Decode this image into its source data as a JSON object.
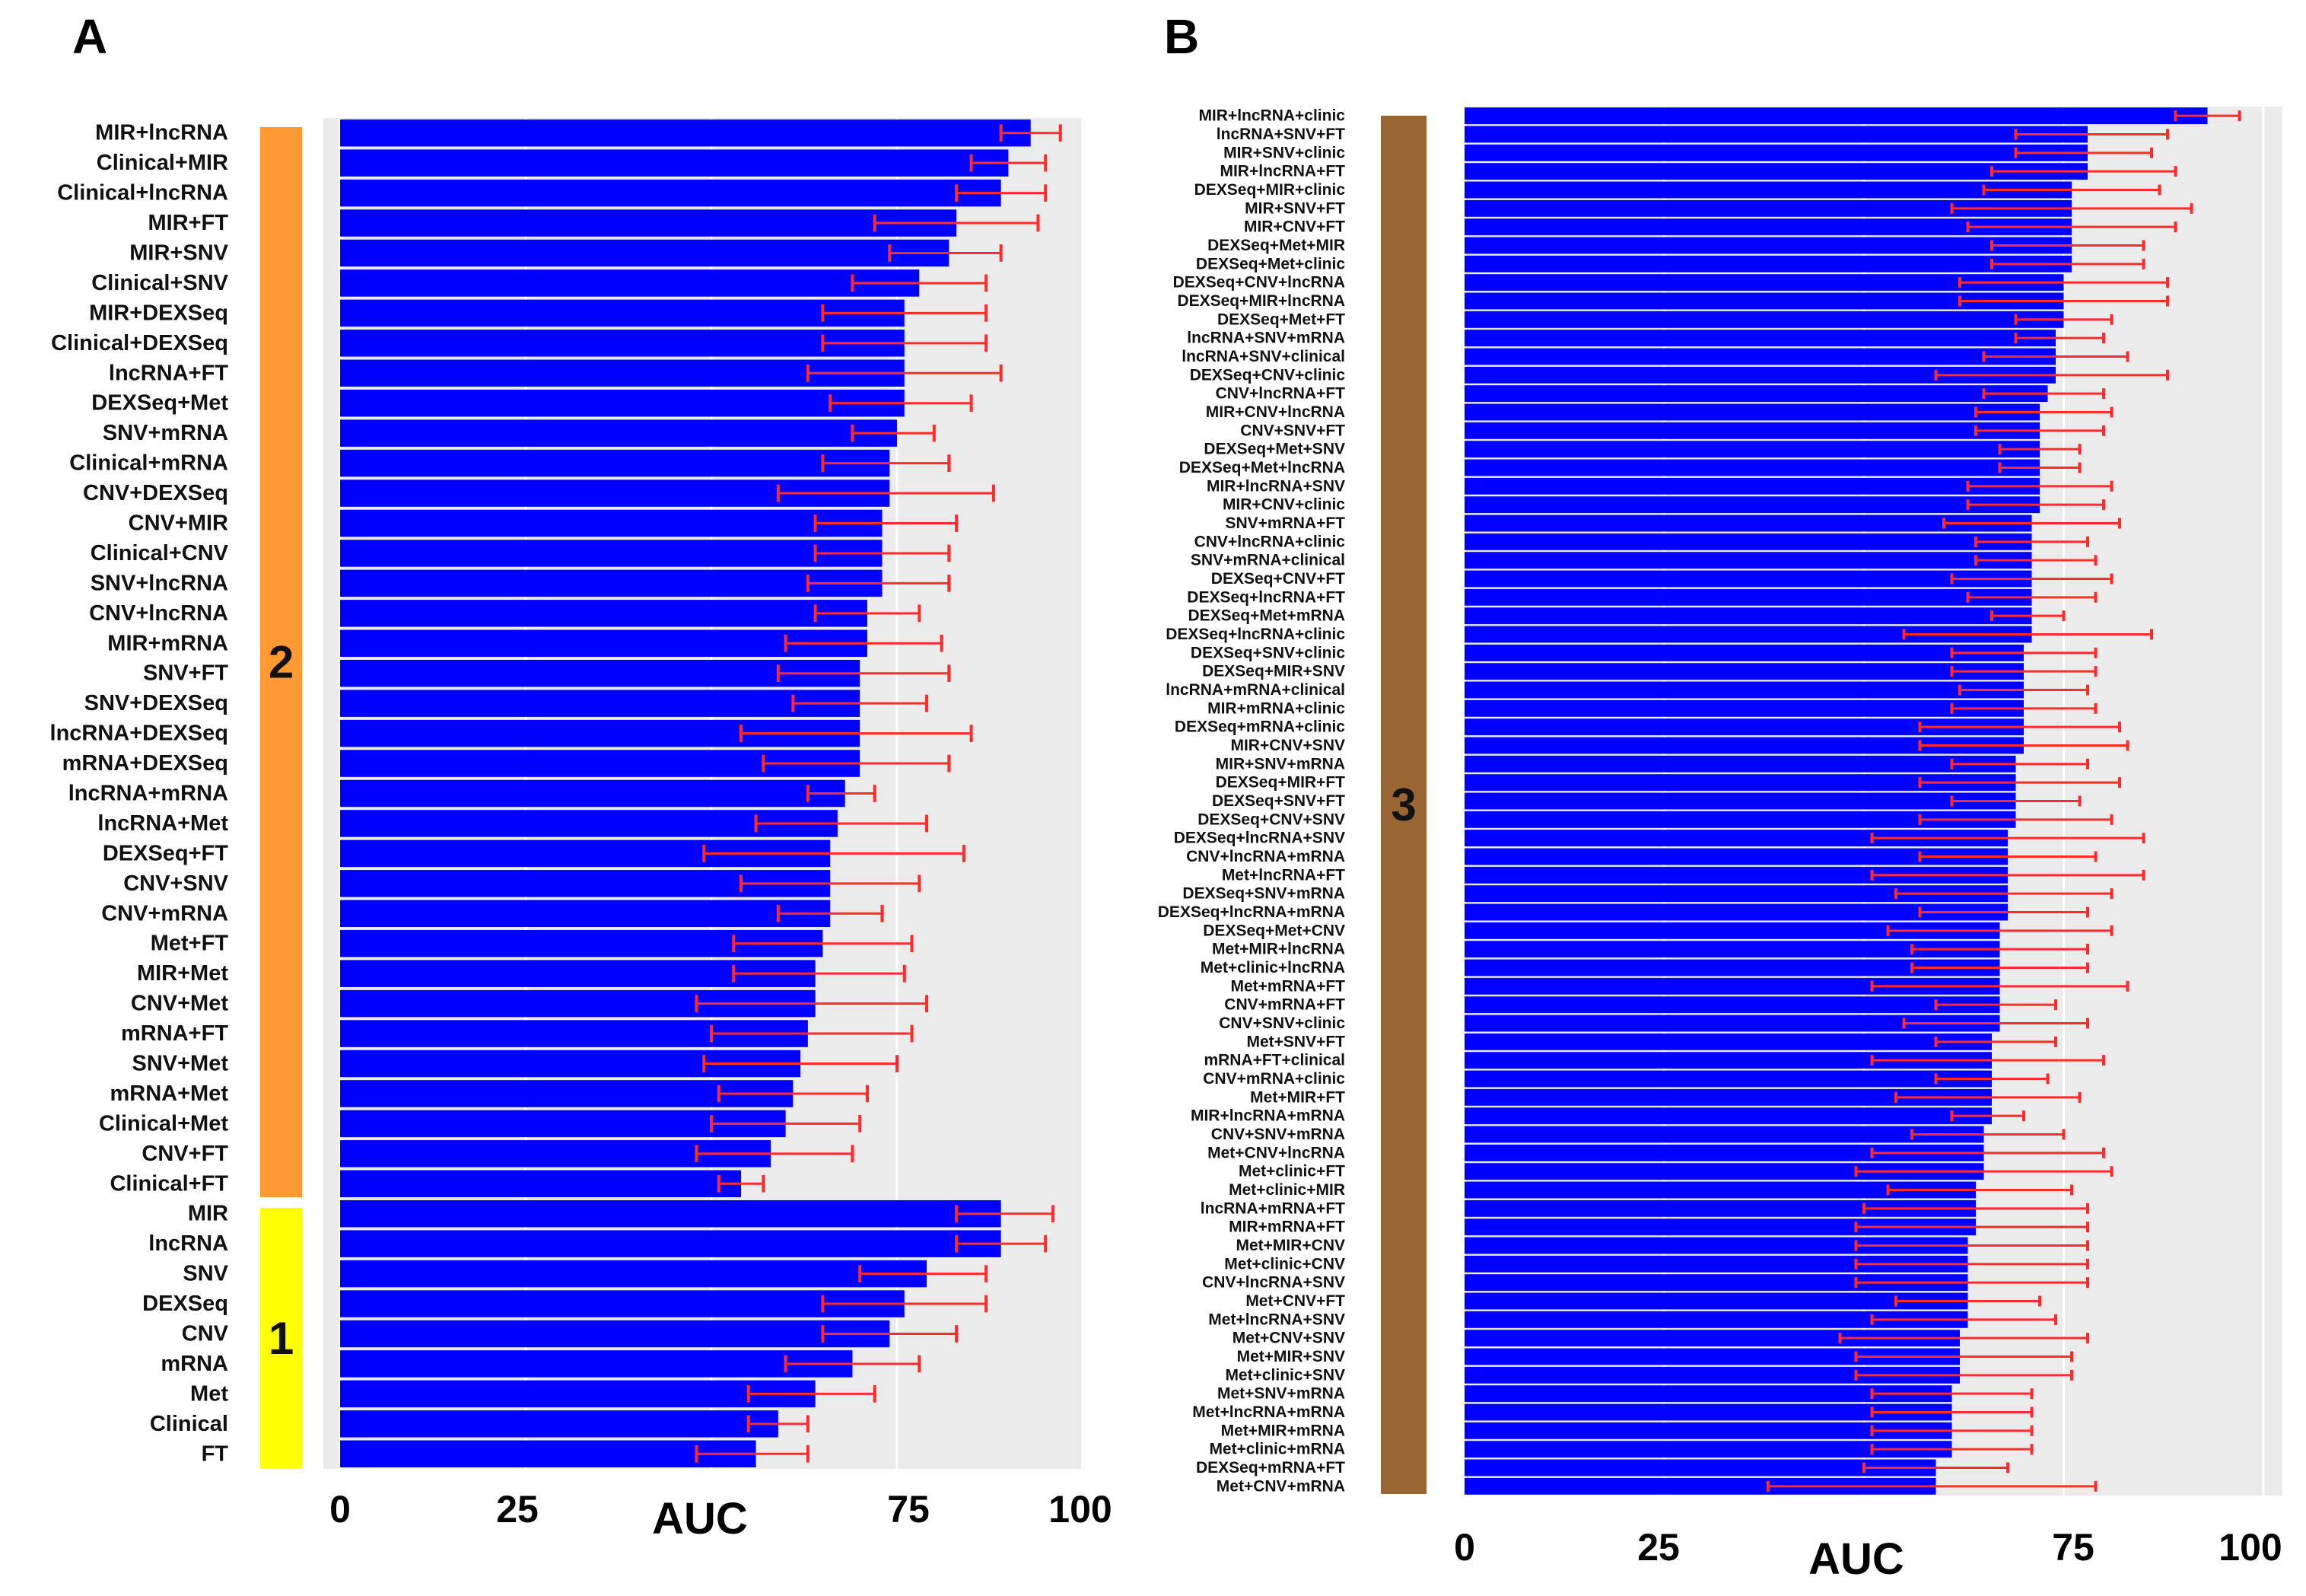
{
  "colors": {
    "bar": "#0000FF",
    "error_bar": "#FF2A2A",
    "panel_bg": "#EBEBEB",
    "group_1": "#FFFF00",
    "group_2": "#FF9933",
    "group_3": "#996633"
  },
  "chart_data": [
    {
      "panel": "A",
      "type": "bar",
      "orientation": "horizontal",
      "xlabel": "AUC",
      "xticks": [
        "0",
        "25",
        "75",
        "100"
      ],
      "xlim": [
        0,
        100
      ],
      "grid": true,
      "groups": [
        {
          "label": "2",
          "color": "#FF9933",
          "start": 0,
          "end": 35
        },
        {
          "label": "1",
          "color": "#FFFF00",
          "start": 36,
          "end": 44
        }
      ],
      "categories": [
        "MIR+lncRNA",
        "Clinical+MIR",
        "Clinical+lncRNA",
        "MIR+FT",
        "MIR+SNV",
        "Clinical+SNV",
        "MIR+DEXSeq",
        "Clinical+DEXSeq",
        "lncRNA+FT",
        "DEXSeq+Met",
        "SNV+mRNA",
        "Clinical+mRNA",
        "CNV+DEXSeq",
        "CNV+MIR",
        "Clinical+CNV",
        "SNV+lncRNA",
        "CNV+lncRNA",
        "MIR+mRNA",
        "SNV+FT",
        "SNV+DEXSeq",
        "lncRNA+DEXSeq",
        "mRNA+DEXSeq",
        "lncRNA+mRNA",
        "lncRNA+Met",
        "DEXSeq+FT",
        "CNV+SNV",
        "CNV+mRNA",
        "Met+FT",
        "MIR+Met",
        "CNV+Met",
        "mRNA+FT",
        "SNV+Met",
        "mRNA+Met",
        "Clinical+Met",
        "CNV+FT",
        "Clinical+FT",
        "MIR",
        "lncRNA",
        "SNV",
        "DEXSeq",
        "CNV",
        "mRNA",
        "Met",
        "Clinical",
        "FT"
      ],
      "values": [
        93,
        90,
        89,
        83,
        82,
        78,
        76,
        76,
        76,
        76,
        75,
        74,
        74,
        73,
        73,
        73,
        71,
        71,
        70,
        70,
        70,
        70,
        68,
        67,
        66,
        66,
        66,
        65,
        64,
        64,
        63,
        62,
        61,
        60,
        58,
        54,
        89,
        89,
        79,
        76,
        74,
        69,
        64,
        59,
        56
      ],
      "err_low": [
        89,
        85,
        83,
        72,
        74,
        69,
        65,
        65,
        63,
        66,
        69,
        65,
        59,
        64,
        64,
        63,
        64,
        60,
        59,
        61,
        54,
        57,
        63,
        56,
        49,
        54,
        59,
        53,
        53,
        48,
        50,
        49,
        51,
        50,
        48,
        51,
        83,
        83,
        70,
        65,
        65,
        60,
        55,
        55,
        48
      ],
      "err_high": [
        97,
        95,
        95,
        94,
        89,
        87,
        87,
        87,
        89,
        85,
        80,
        82,
        88,
        83,
        82,
        82,
        78,
        81,
        82,
        79,
        85,
        82,
        72,
        79,
        84,
        78,
        73,
        77,
        76,
        79,
        77,
        75,
        71,
        70,
        69,
        57,
        96,
        95,
        87,
        87,
        83,
        78,
        72,
        63,
        63
      ]
    },
    {
      "panel": "B",
      "type": "bar",
      "orientation": "horizontal",
      "xlabel": "AUC",
      "xticks": [
        "0",
        "25",
        "75",
        "100"
      ],
      "xlim": [
        0,
        100
      ],
      "grid": true,
      "groups": [
        {
          "label": "3",
          "color": "#996633",
          "start": 0,
          "end": 74
        }
      ],
      "categories": [
        "MIR+lncRNA+clinic",
        "lncRNA+SNV+FT",
        "MIR+SNV+clinic",
        "MIR+lncRNA+FT",
        "DEXSeq+MIR+clinic",
        "MIR+SNV+FT",
        "MIR+CNV+FT",
        "DEXSeq+Met+MIR",
        "DEXSeq+Met+clinic",
        "DEXSeq+CNV+lncRNA",
        "DEXSeq+MIR+lncRNA",
        "DEXSeq+Met+FT",
        "lncRNA+SNV+mRNA",
        "lncRNA+SNV+clinical",
        "DEXSeq+CNV+clinic",
        "CNV+lncRNA+FT",
        "MIR+CNV+lncRNA",
        "CNV+SNV+FT",
        "DEXSeq+Met+SNV",
        "DEXSeq+Met+lncRNA",
        "MIR+lncRNA+SNV",
        "MIR+CNV+clinic",
        "SNV+mRNA+FT",
        "CNV+lncRNA+clinic",
        "SNV+mRNA+clinical",
        "DEXSeq+CNV+FT",
        "DEXSeq+lncRNA+FT",
        "DEXSeq+Met+mRNA",
        "DEXSeq+lncRNA+clinic",
        "DEXSeq+SNV+clinic",
        "DEXSeq+MIR+SNV",
        "lncRNA+mRNA+clinical",
        "MIR+mRNA+clinic",
        "DEXSeq+mRNA+clinic",
        "MIR+CNV+SNV",
        "MIR+SNV+mRNA",
        "DEXSeq+MIR+FT",
        "DEXSeq+SNV+FT",
        "DEXSeq+CNV+SNV",
        "DEXSeq+lncRNA+SNV",
        "CNV+lncRNA+mRNA",
        "Met+lncRNA+FT",
        "DEXSeq+SNV+mRNA",
        "DEXSeq+lncRNA+mRNA",
        "DEXSeq+Met+CNV",
        "Met+MIR+lncRNA",
        "Met+clinic+lncRNA",
        "Met+mRNA+FT",
        "CNV+mRNA+FT",
        "CNV+SNV+clinic",
        "Met+SNV+FT",
        "mRNA+FT+clinical",
        "CNV+mRNA+clinic",
        "Met+MIR+FT",
        "MIR+lncRNA+mRNA",
        "CNV+SNV+mRNA",
        "Met+CNV+lncRNA",
        "Met+clinic+FT",
        "Met+clinic+MIR",
        "lncRNA+mRNA+FT",
        "MIR+mRNA+FT",
        "Met+MIR+CNV",
        "Met+clinic+CNV",
        "CNV+lncRNA+SNV",
        "Met+CNV+FT",
        "Met+lncRNA+SNV",
        "Met+CNV+SNV",
        "Met+MIR+SNV",
        "Met+clinic+SNV",
        "Met+SNV+mRNA",
        "Met+lncRNA+mRNA",
        "Met+MIR+mRNA",
        "Met+clinic+mRNA",
        "DEXSeq+mRNA+FT",
        "Met+CNV+mRNA"
      ],
      "values": [
        93,
        78,
        78,
        78,
        76,
        76,
        76,
        76,
        76,
        75,
        75,
        75,
        74,
        74,
        74,
        73,
        72,
        72,
        72,
        72,
        72,
        72,
        71,
        71,
        71,
        71,
        71,
        71,
        71,
        70,
        70,
        70,
        70,
        70,
        70,
        69,
        69,
        69,
        69,
        68,
        68,
        68,
        68,
        68,
        67,
        67,
        67,
        67,
        67,
        67,
        66,
        66,
        66,
        66,
        66,
        65,
        65,
        65,
        64,
        64,
        64,
        63,
        63,
        63,
        63,
        63,
        62,
        62,
        62,
        61,
        61,
        61,
        61,
        59,
        59
      ],
      "err_low": [
        89,
        69,
        69,
        66,
        65,
        61,
        63,
        66,
        66,
        62,
        62,
        69,
        69,
        65,
        59,
        65,
        64,
        64,
        67,
        67,
        63,
        63,
        60,
        64,
        64,
        61,
        63,
        66,
        55,
        61,
        61,
        62,
        61,
        57,
        57,
        61,
        57,
        61,
        57,
        51,
        57,
        51,
        54,
        57,
        53,
        56,
        56,
        51,
        59,
        55,
        59,
        51,
        59,
        54,
        61,
        56,
        51,
        49,
        53,
        50,
        49,
        49,
        49,
        49,
        54,
        51,
        47,
        49,
        49,
        51,
        51,
        51,
        51,
        50,
        38
      ],
      "err_high": [
        97,
        88,
        86,
        89,
        87,
        91,
        89,
        85,
        85,
        88,
        88,
        81,
        80,
        83,
        88,
        80,
        81,
        80,
        77,
        77,
        81,
        80,
        82,
        78,
        79,
        81,
        79,
        75,
        86,
        79,
        79,
        78,
        79,
        82,
        83,
        78,
        82,
        77,
        81,
        85,
        79,
        85,
        81,
        78,
        81,
        78,
        78,
        83,
        74,
        78,
        74,
        80,
        73,
        77,
        70,
        75,
        80,
        81,
        76,
        78,
        78,
        78,
        78,
        78,
        72,
        74,
        78,
        76,
        76,
        71,
        71,
        71,
        71,
        68,
        79
      ]
    }
  ]
}
